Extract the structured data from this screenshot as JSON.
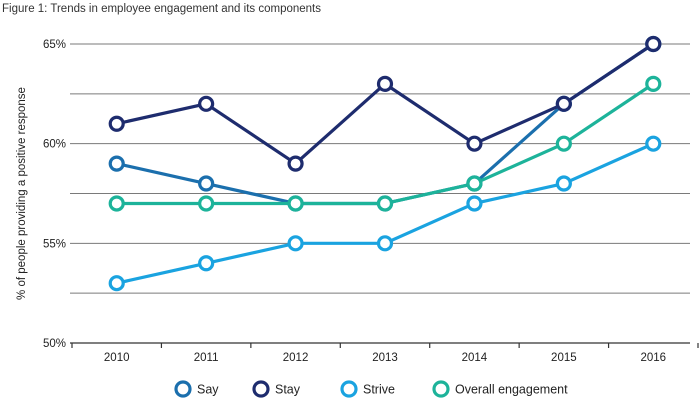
{
  "chart_data": {
    "type": "line",
    "title": "Figure 1: Trends in employee engagement and its components",
    "ylabel": "% of people providing a positive response",
    "xlabel": "",
    "categories": [
      "2010",
      "2011",
      "2012",
      "2013",
      "2014",
      "2015",
      "2016"
    ],
    "ylim": [
      50,
      65
    ],
    "yticks": [
      50,
      55,
      60,
      65
    ],
    "ytick_labels": [
      "50%",
      "55%",
      "60%",
      "65%"
    ],
    "grid": true,
    "legend_position": "bottom",
    "series": [
      {
        "name": "Say",
        "color": "#1b6fad",
        "values": [
          59,
          58,
          57,
          57,
          58,
          62,
          65
        ]
      },
      {
        "name": "Stay",
        "color": "#1e2c6e",
        "values": [
          61,
          62,
          59,
          63,
          60,
          62,
          65
        ]
      },
      {
        "name": "Strive",
        "color": "#1aa3e0",
        "values": [
          53,
          54,
          55,
          55,
          57,
          58,
          60
        ]
      },
      {
        "name": "Overall engagement",
        "color": "#1db39a",
        "values": [
          57,
          57,
          57,
          57,
          58,
          60,
          63
        ]
      }
    ]
  }
}
